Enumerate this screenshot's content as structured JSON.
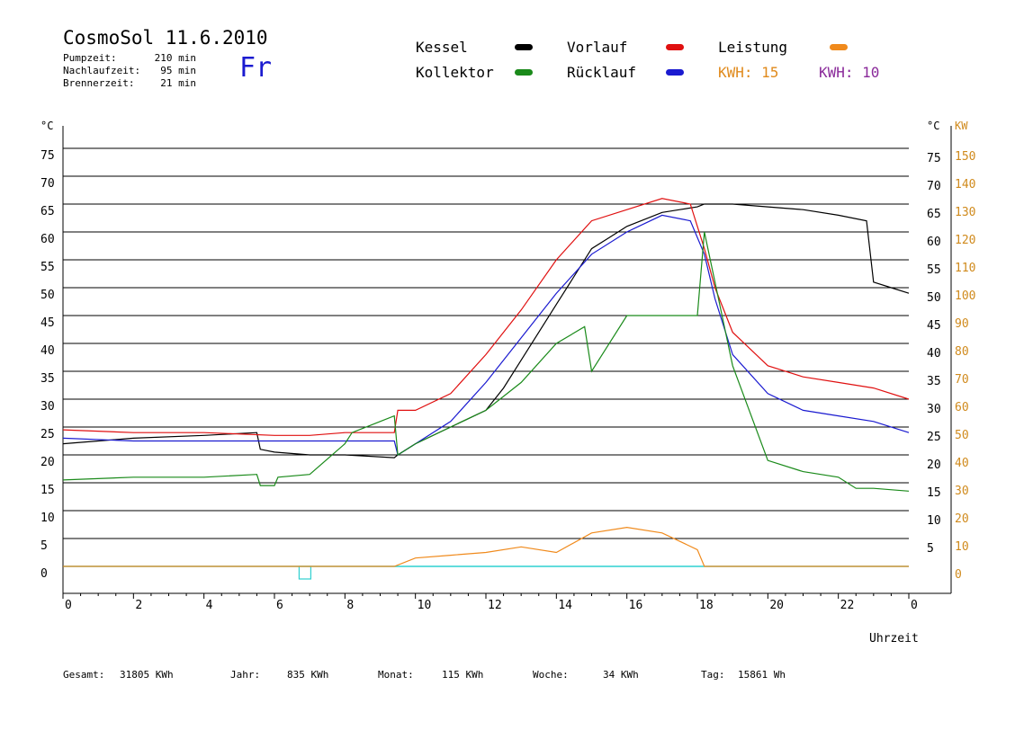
{
  "header": {
    "title": "CosmoSol 11.6.2010",
    "day": "Fr",
    "stats": [
      {
        "label": "Pumpzeit:",
        "value": "210 min"
      },
      {
        "label": "Nachlaufzeit:",
        "value": "95 min"
      },
      {
        "label": "Brennerzeit:",
        "value": "21 min"
      }
    ]
  },
  "legend": {
    "items": [
      {
        "label": "Kessel",
        "color": "#000000"
      },
      {
        "label": "Vorlauf",
        "color": "#e01010"
      },
      {
        "label": "Leistung",
        "color": "#f08a1c"
      },
      {
        "label": "Kollektor",
        "color": "#1a8a1a"
      },
      {
        "label": "Rücklauf",
        "color": "#1a1ad0"
      }
    ],
    "kwh1": {
      "label": "KWH:",
      "value": "15",
      "color": "#e08a1c"
    },
    "kwh2": {
      "label": "KWH:",
      "value": "10",
      "color": "#8a2a9a"
    }
  },
  "footer": {
    "gesamt_label": "Gesamt:",
    "gesamt_value": "31805 KWh",
    "jahr_label": "Jahr:",
    "jahr_value": "835 KWh",
    "monat_label": "Monat:",
    "monat_value": "115 KWh",
    "woche_label": "Woche:",
    "woche_value": "34 KWh",
    "tag_label": "Tag:",
    "tag_value": "15861 Wh"
  },
  "chart_data": {
    "type": "line",
    "xlabel": "Uhrzeit",
    "ylabel_left": "°C",
    "ylabel_right_temp": "°C",
    "ylabel_right_power": "KW",
    "xlim": [
      0,
      24
    ],
    "ylim": [
      0,
      80
    ],
    "x_ticks": [
      "0",
      "2",
      "4",
      "6",
      "8",
      "10",
      "12",
      "14",
      "16",
      "18",
      "20",
      "22",
      "0"
    ],
    "y_ticks_left": [
      "0",
      "5",
      "10",
      "15",
      "20",
      "25",
      "30",
      "35",
      "40",
      "45",
      "50",
      "55",
      "60",
      "65",
      "70",
      "75"
    ],
    "y_ticks_right_temp": [
      "5",
      "10",
      "15",
      "20",
      "25",
      "30",
      "35",
      "40",
      "45",
      "50",
      "55",
      "60",
      "65",
      "70",
      "75"
    ],
    "y_ticks_right_power": [
      "0",
      "10",
      "20",
      "30",
      "40",
      "50",
      "60",
      "70",
      "80",
      "90",
      "100",
      "110",
      "120",
      "130",
      "140",
      "150"
    ],
    "grid": true,
    "series": [
      {
        "name": "Kessel",
        "color": "#000000",
        "x": [
          0,
          2,
          4,
          5.5,
          5.6,
          6,
          7,
          8,
          9.4,
          9.5,
          10,
          11,
          12,
          12.5,
          13,
          14,
          15,
          15.5,
          16,
          17,
          17.5,
          18,
          18.2,
          19,
          20,
          21,
          22,
          22.8,
          23,
          23.5,
          24
        ],
        "y": [
          22,
          23,
          23.5,
          24,
          21,
          20.5,
          20,
          20,
          19.5,
          20,
          22,
          25,
          28,
          32,
          37,
          47,
          57,
          59,
          61,
          63.5,
          64,
          64.5,
          65,
          65,
          64.5,
          64,
          63,
          62,
          51,
          50,
          49
        ]
      },
      {
        "name": "Vorlauf",
        "color": "#e01010",
        "x": [
          0,
          2,
          4,
          6,
          7,
          8,
          9.4,
          9.5,
          10,
          11,
          12,
          13,
          14,
          15,
          16,
          17,
          17.8,
          18.2,
          18.5,
          19,
          20,
          21,
          22,
          23,
          24
        ],
        "y": [
          24.5,
          24,
          24,
          23.5,
          23.5,
          24,
          24,
          28,
          28,
          31,
          38,
          46,
          55,
          62,
          64,
          66,
          65,
          57,
          50,
          42,
          36,
          34,
          33,
          32,
          30
        ]
      },
      {
        "name": "Rücklauf",
        "color": "#1a1ad0",
        "x": [
          0,
          2,
          4,
          6,
          8,
          9.4,
          9.5,
          10,
          11,
          12,
          13,
          14,
          15,
          16,
          17,
          17.8,
          18.2,
          18.5,
          19,
          20,
          21,
          22,
          23,
          24
        ],
        "y": [
          23,
          22.5,
          22.5,
          22.5,
          22.5,
          22.5,
          20,
          22,
          26,
          33,
          41,
          49,
          56,
          60,
          63,
          62,
          56,
          48,
          38,
          31,
          28,
          27,
          26,
          24
        ]
      },
      {
        "name": "Kollektor",
        "color": "#1a8a1a",
        "x": [
          0,
          2,
          4,
          5.5,
          5.6,
          6,
          6.1,
          7,
          8,
          8.2,
          9,
          9.4,
          9.5,
          10,
          11,
          12,
          13,
          14,
          14.8,
          15,
          16,
          17,
          18,
          18.2,
          19,
          20,
          21,
          22,
          22.5,
          23,
          24
        ],
        "y": [
          15.5,
          16,
          16,
          16.5,
          14.5,
          14.5,
          16,
          16.5,
          22,
          24,
          26,
          27,
          20,
          22,
          25,
          28,
          33,
          40,
          43,
          35,
          45,
          45,
          45,
          60,
          36,
          19,
          17,
          16,
          14,
          14,
          13.5
        ]
      }
    ],
    "power_series": [
      {
        "name": "Leistung",
        "color": "#f08a1c",
        "x": [
          0,
          9.4,
          10,
          11,
          12,
          13,
          14,
          15,
          16,
          17,
          18,
          18.2,
          24
        ],
        "y": [
          0,
          0,
          3,
          4,
          5,
          7,
          5,
          12,
          14,
          12,
          6,
          0,
          0
        ]
      }
    ]
  }
}
